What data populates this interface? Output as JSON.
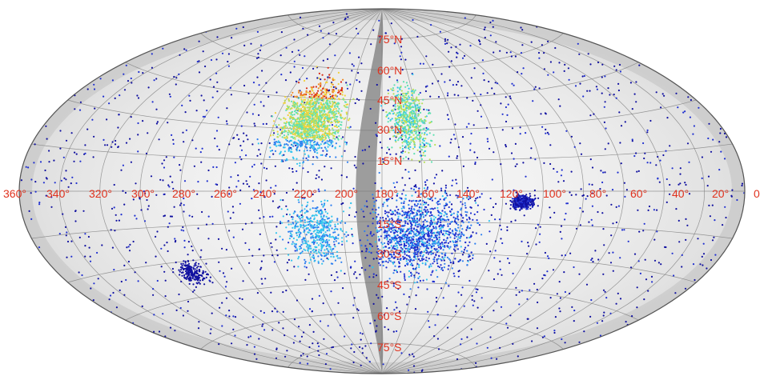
{
  "projection": "aitoff",
  "longitude_labels": [
    "360°",
    "340°",
    "320°",
    "300°",
    "280°",
    "260°",
    "240°",
    "220°",
    "200°",
    "180°",
    "160°",
    "140°",
    "120°",
    "100°",
    "80°",
    "60°",
    "40°",
    "20°",
    "0"
  ],
  "latitude_labels": [
    "75°N",
    "60°N",
    "45°N",
    "30°N",
    "15°N",
    "15°S",
    "30°S",
    "45°S",
    "60°S",
    "75°S"
  ],
  "colors": {
    "label": "#e0321e",
    "grid": "#7a7a7a",
    "background": "#ffffff"
  },
  "point_colors": [
    "#1010a0",
    "#2030d0",
    "#2e7ff0",
    "#33c4ee",
    "#5fe0b0",
    "#b8e05a",
    "#f0d23a",
    "#f08a24",
    "#d82a14"
  ]
}
